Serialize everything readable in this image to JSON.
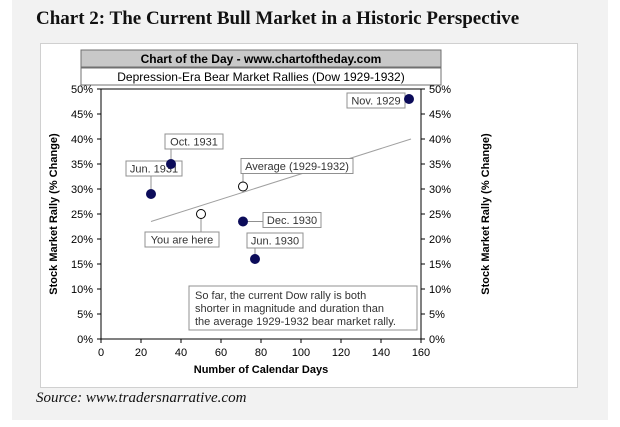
{
  "page": {
    "heading": "Chart 2:  The Current Bull Market in a Historic Perspective",
    "source": "Source: www.tradersnarrative.com"
  },
  "chart_data": {
    "type": "scatter",
    "banner": "Chart of the Day - www.chartoftheday.com",
    "title": "Depression-Era Bear Market Rallies (Dow 1929-1932)",
    "xlabel": "Number of Calendar Days",
    "ylabel_left": "Stock Market Rally (% Change)",
    "ylabel_right": "Stock Market Rally (% Change)",
    "xlim": [
      0,
      160
    ],
    "ylim": [
      0,
      50
    ],
    "x_ticks": [
      0,
      20,
      40,
      60,
      80,
      100,
      120,
      140,
      160
    ],
    "y_ticks": [
      0,
      5,
      10,
      15,
      20,
      25,
      30,
      35,
      40,
      45,
      50
    ],
    "y_tick_suffix": "%",
    "grid": false,
    "points": [
      {
        "label": "Nov. 1929",
        "x": 154,
        "y": 48,
        "style": "filled"
      },
      {
        "label": "Oct. 1931",
        "x": 35,
        "y": 35,
        "style": "filled"
      },
      {
        "label": "Jun. 1931",
        "x": 25,
        "y": 29,
        "style": "filled"
      },
      {
        "label": "Dec. 1930",
        "x": 71,
        "y": 23.5,
        "style": "filled"
      },
      {
        "label": "Jun. 1930",
        "x": 77,
        "y": 16,
        "style": "filled"
      },
      {
        "label": "Average (1929-1932)",
        "x": 71,
        "y": 30.5,
        "style": "open"
      },
      {
        "label": "You are here",
        "x": 50,
        "y": 25,
        "style": "open"
      }
    ],
    "trendline": {
      "x": [
        25,
        155
      ],
      "y": [
        23.5,
        40
      ]
    },
    "annotation": [
      "So far, the current Dow rally is both",
      "shorter in magnitude and duration than",
      "the average 1929-1932 bear market rally."
    ],
    "colors": {
      "banner_bg": "#c8c8c8",
      "point_fill": "#0c0c5a",
      "open_point": "#ffffff",
      "trendline": "#a0a0a0",
      "label_border": "#909090"
    }
  }
}
